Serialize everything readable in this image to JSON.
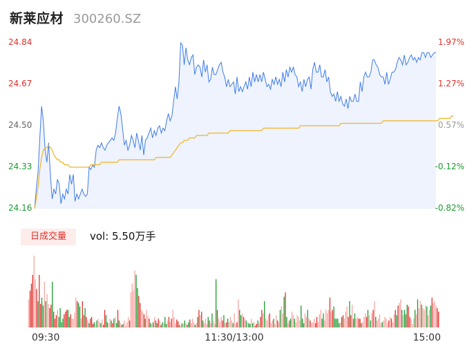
{
  "header": {
    "name": "新莱应材",
    "code": "300260.SZ"
  },
  "volume": {
    "button_label": "日成交量",
    "value_text": "vol: 5.50万手"
  },
  "colors": {
    "up": "#e0302b",
    "down": "#1a9b2f",
    "price": "#3d7be6",
    "avg": "#f0b323",
    "fill": "#eef3fd"
  },
  "chart_data": [
    {
      "type": "line",
      "ylabels_left": [
        "24.84",
        "24.67",
        "24.50",
        "24.33",
        "24.16"
      ],
      "ylabels_right": [
        "1.97%",
        "1.27%",
        "0.57%",
        "-0.12%",
        "-0.82%"
      ],
      "ylim": [
        24.16,
        24.84
      ],
      "xticks": [
        "09:30",
        "11:30/13:00",
        "15:00"
      ],
      "series": [
        {
          "role": "price",
          "values": [
            24.16,
            24.24,
            24.31,
            24.45,
            24.58,
            24.52,
            24.4,
            24.35,
            24.43,
            24.3,
            24.2,
            24.24,
            24.22,
            24.28,
            24.26,
            24.18,
            24.22,
            24.2,
            24.24,
            24.22,
            24.3,
            24.26,
            24.3,
            24.19,
            24.22,
            24.2,
            24.22,
            24.24,
            24.22,
            24.21,
            24.22,
            24.33,
            24.32,
            24.34,
            24.33,
            24.4,
            24.42,
            24.41,
            24.43,
            24.41,
            24.4,
            24.42,
            24.43,
            24.44,
            24.45,
            24.44,
            24.47,
            24.53,
            24.58,
            24.55,
            24.49,
            24.42,
            24.44,
            24.4,
            24.42,
            24.46,
            24.44,
            24.41,
            24.47,
            24.44,
            24.4,
            24.46,
            24.38,
            24.44,
            24.45,
            24.47,
            24.49,
            24.45,
            24.48,
            24.46,
            24.49,
            24.5,
            24.47,
            24.49,
            24.48,
            24.52,
            24.55,
            24.52,
            24.54,
            24.6,
            24.66,
            24.61,
            24.68,
            24.84,
            24.83,
            24.75,
            24.82,
            24.77,
            24.75,
            24.78,
            24.79,
            24.71,
            24.74,
            24.75,
            24.74,
            24.7,
            24.77,
            24.72,
            24.75,
            24.68,
            24.69,
            24.74,
            24.71,
            24.71,
            24.73,
            24.75,
            24.76,
            24.72,
            24.7,
            24.66,
            24.69,
            24.66,
            24.67,
            24.68,
            24.63,
            24.7,
            24.64,
            24.66,
            24.64,
            24.66,
            24.68,
            24.65,
            24.7,
            24.66,
            24.72,
            24.68,
            24.71,
            24.68,
            24.71,
            24.68,
            24.72,
            24.69,
            24.66,
            24.67,
            24.65,
            24.69,
            24.67,
            24.7,
            24.67,
            24.69,
            24.66,
            24.72,
            24.68,
            24.73,
            24.7,
            24.74,
            24.72,
            24.74,
            24.71,
            24.7,
            24.66,
            24.68,
            24.64,
            24.69,
            24.66,
            24.69,
            24.7,
            24.65,
            24.73,
            24.76,
            24.72,
            24.72,
            24.75,
            24.7,
            24.7,
            24.73,
            24.68,
            24.7,
            24.64,
            24.62,
            24.63,
            24.6,
            24.64,
            24.6,
            24.62,
            24.59,
            24.58,
            24.61,
            24.57,
            24.62,
            24.6,
            24.6,
            24.63,
            24.6,
            24.6,
            24.68,
            24.64,
            24.7,
            24.72,
            24.7,
            24.7,
            24.72,
            24.77,
            24.77,
            24.75,
            24.74,
            24.71,
            24.7,
            24.7,
            24.67,
            24.72,
            24.67,
            24.69,
            24.72,
            24.72,
            24.73,
            24.76,
            24.78,
            24.77,
            24.75,
            24.79,
            24.75,
            24.76,
            24.78,
            24.79,
            24.77,
            24.78,
            24.76,
            24.78,
            24.77,
            24.8,
            24.8,
            24.78,
            24.8,
            24.8,
            24.78,
            24.79,
            24.8,
            24.8
          ]
        },
        {
          "role": "average",
          "values": [
            24.16,
            24.2,
            24.25,
            24.32,
            24.37,
            24.4,
            24.41,
            24.41,
            24.42,
            24.41,
            24.4,
            24.38,
            24.37,
            24.36,
            24.36,
            24.35,
            24.35,
            24.34,
            24.34,
            24.34,
            24.33,
            24.33,
            24.33,
            24.33,
            24.33,
            24.33,
            24.33,
            24.33,
            24.33,
            24.33,
            24.33,
            24.33,
            24.34,
            24.34,
            24.34,
            24.34,
            24.34,
            24.34,
            24.35,
            24.35,
            24.35,
            24.35,
            24.35,
            24.35,
            24.35,
            24.35,
            24.35,
            24.35,
            24.36,
            24.36,
            24.36,
            24.36,
            24.36,
            24.36,
            24.36,
            24.36,
            24.36,
            24.36,
            24.36,
            24.36,
            24.36,
            24.36,
            24.36,
            24.36,
            24.36,
            24.36,
            24.36,
            24.36,
            24.36,
            24.37,
            24.37,
            24.37,
            24.37,
            24.37,
            24.37,
            24.37,
            24.37,
            24.37,
            24.38,
            24.39,
            24.4,
            24.41,
            24.42,
            24.43,
            24.43,
            24.44,
            24.44,
            24.44,
            24.45,
            24.45,
            24.45,
            24.45,
            24.46,
            24.46,
            24.46,
            24.46,
            24.46,
            24.46,
            24.46,
            24.47,
            24.47,
            24.47,
            24.47,
            24.47,
            24.47,
            24.47,
            24.47,
            24.47,
            24.47,
            24.47,
            24.47,
            24.48,
            24.48,
            24.48,
            24.48,
            24.48,
            24.48,
            24.48,
            24.48,
            24.48,
            24.48,
            24.48,
            24.48,
            24.48,
            24.48,
            24.48,
            24.48,
            24.48,
            24.48,
            24.48,
            24.49,
            24.49,
            24.49,
            24.49,
            24.49,
            24.49,
            24.49,
            24.49,
            24.49,
            24.49,
            24.49,
            24.49,
            24.49,
            24.49,
            24.49,
            24.49,
            24.49,
            24.49,
            24.49,
            24.49,
            24.49,
            24.5,
            24.5,
            24.5,
            24.5,
            24.5,
            24.5,
            24.5,
            24.5,
            24.5,
            24.5,
            24.5,
            24.5,
            24.5,
            24.5,
            24.5,
            24.5,
            24.5,
            24.5,
            24.5,
            24.5,
            24.5,
            24.5,
            24.5,
            24.51,
            24.51,
            24.51,
            24.51,
            24.51,
            24.51,
            24.51,
            24.51,
            24.51,
            24.51,
            24.51,
            24.51,
            24.51,
            24.51,
            24.51,
            24.51,
            24.51,
            24.51,
            24.51,
            24.51,
            24.51,
            24.51,
            24.51,
            24.51,
            24.52,
            24.52,
            24.52,
            24.52,
            24.52,
            24.52,
            24.52,
            24.52,
            24.52,
            24.52,
            24.52,
            24.52,
            24.52,
            24.52,
            24.52,
            24.52,
            24.52,
            24.52,
            24.52,
            24.52,
            24.52,
            24.52,
            24.52,
            24.52,
            24.52,
            24.52,
            24.52,
            24.52,
            24.52,
            24.52,
            24.52,
            24.52,
            24.53,
            24.53,
            24.53,
            24.53,
            24.53,
            24.53,
            24.53,
            24.54,
            24.54
          ]
        }
      ]
    },
    {
      "type": "bar",
      "name": "volume",
      "values": [
        0.32,
        0.42,
        0.5,
        0.6,
        0.82,
        0.55,
        0.44,
        0.3,
        0.6,
        0.27,
        0.34,
        0.25,
        0.52,
        0.3,
        0.38,
        0.27,
        0.22,
        0.26,
        0.52,
        0.18,
        0.1,
        0.14,
        0.2,
        0.12,
        0.22,
        0.06,
        0.1,
        0.15,
        0.18,
        0.2,
        0.2,
        0.12,
        0.15,
        0.1,
        0.1,
        0.17,
        0.34,
        0.3,
        0.28,
        0.24,
        0.1,
        0.3,
        0.14,
        0.22,
        0.12,
        0.08,
        0.05,
        0.1,
        0.12,
        0.04,
        0.06,
        0.04,
        0.08,
        0.1,
        0.06,
        0.05,
        0.09,
        0.03,
        0.2,
        0.14,
        0.06,
        0.05,
        0.1,
        0.08,
        0.05,
        0.1,
        0.12,
        0.05,
        0.2,
        0.08,
        0.05,
        0.03,
        0.04,
        0.08,
        0.02,
        0.06,
        0.12,
        0.08,
        0.4,
        0.5,
        0.42,
        0.65,
        0.6,
        0.45,
        0.36,
        0.28,
        0.2,
        0.18,
        0.15,
        0.1,
        0.2,
        0.13,
        0.1,
        0.05,
        0.04,
        0.06,
        0.12,
        0.08,
        0.05,
        0.1,
        0.08,
        0.03,
        0.06,
        0.05,
        0.12,
        0.04,
        0.08,
        0.12,
        0.06,
        0.1,
        0.2,
        0.12,
        0.05,
        0.09,
        0.07,
        0.03,
        0.02,
        0.05,
        0.04,
        0.08,
        0.05,
        0.03,
        0.06,
        0.09,
        0.05,
        0.1,
        0.06,
        0.03,
        0.05,
        0.12,
        0.2,
        0.14,
        0.18,
        0.08,
        0.05,
        0.1,
        0.04,
        0.12,
        0.08,
        0.05,
        0.16,
        0.08,
        0.04,
        0.55,
        0.2,
        0.1,
        0.06,
        0.12,
        0.08,
        0.14,
        0.05,
        0.06,
        0.1,
        0.06,
        0.12,
        0.08,
        0.05,
        0.16,
        0.04,
        0.06,
        0.32,
        0.2,
        0.14,
        0.16,
        0.12,
        0.1,
        0.08,
        0.06,
        0.05,
        0.04,
        0.1,
        0.05,
        0.06,
        0.02,
        0.04,
        0.08,
        0.05,
        0.12,
        0.2,
        0.16,
        0.3,
        0.1,
        0.08,
        0.14,
        0.16,
        0.05,
        0.08,
        0.1,
        0.04,
        0.14,
        0.08,
        0.06,
        0.2,
        0.24,
        0.16,
        0.35,
        0.4,
        0.12,
        0.05,
        0.08,
        0.1,
        0.18,
        0.14,
        0.1,
        0.06,
        0.14,
        0.12,
        0.08,
        0.25,
        0.1,
        0.05,
        0.16,
        0.12,
        0.2,
        0.1,
        0.08,
        0.05,
        0.06,
        0.1,
        0.05,
        0.12,
        0.06,
        0.15,
        0.2,
        0.1,
        0.16,
        0.08,
        0.2,
        0.16,
        0.2,
        0.34,
        0.18,
        0.2,
        0.24,
        0.1,
        0.1,
        0.1,
        0.05,
        0.06,
        0.12,
        0.14,
        0.1,
        0.18,
        0.24,
        0.12,
        0.3,
        0.14,
        0.26,
        0.1,
        0.16,
        0.1,
        0.12,
        0.1,
        0.1,
        0.05,
        0.06,
        0.12,
        0.16,
        0.12,
        0.2,
        0.14,
        0.08,
        0.16,
        0.2,
        0.3,
        0.12,
        0.08,
        0.1,
        0.15,
        0.05,
        0.06,
        0.08,
        0.12,
        0.1,
        0.05,
        0.08,
        0.12,
        0.1,
        0.06,
        0.15,
        0.2,
        0.14,
        0.25,
        0.28,
        0.32,
        0.2,
        0.14,
        0.2,
        0.15,
        0.26,
        0.24,
        0.12,
        0.1,
        0.04,
        0.1,
        0.2,
        0.15,
        0.32,
        0.22,
        0.3,
        0.26,
        0.22,
        0.2,
        0.25,
        0.24,
        0.14,
        0.2,
        0.25,
        0.34,
        0.28,
        0.3,
        0.25,
        0.22,
        0.18
      ],
      "directions": "ruuurruduuddrdrruuduuurdddduuuddurrrruddruudurduuudrdrrdruuddrrdudrdudrudrrrrurrrrdduurrudrrudrdrudurudrddrururrruudrdrdrudurrrdrdurudrrrdurdrrdurrrudrudrrrdrrurddrurdrddrdruudruurdrrrurrdrrurdrrdudrudrrdrrrrdddrrdrurrruurrrddrrrrurudddddrdurrrudurudrruudrrrudrdrurdrrrrdrrrrururrudurrdrduduurrrdrdrrdrrrdrrdurrruuudrrrrrrrr"
    }
  ]
}
